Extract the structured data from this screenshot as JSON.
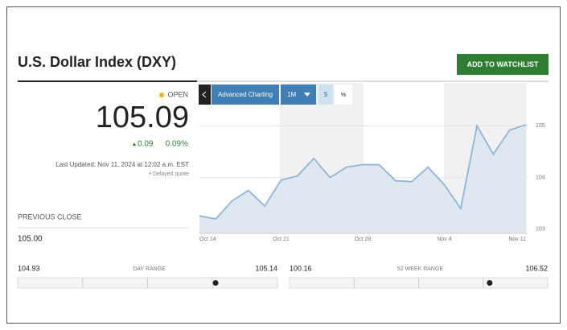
{
  "header": {
    "title": "U.S. Dollar Index (DXY)",
    "button": "ADD TO WATCHLIST"
  },
  "quote": {
    "status": "OPEN",
    "price": 105.09,
    "change": 0.09,
    "change_percent": "0.09%",
    "last_updated": "Last Updated: Nov 11, 2024 at 12:02 a.m. EST",
    "delayed": "• Delayed quote"
  },
  "previous_close": {
    "label": "PREVIOUS CLOSE",
    "value": "105.00"
  },
  "ranges": [
    {
      "low": 104.93,
      "label": "DAY RANGE",
      "high": 105.14
    },
    {
      "low": 100.16,
      "label": "52 WEEK RANGE",
      "high": 106.52
    }
  ],
  "toolbar": {
    "advanced": "Advanced Charting",
    "period": "1M",
    "dollar": "$",
    "percent": "%"
  },
  "chart_data": {
    "type": "line",
    "color": "#8fb4d6",
    "fill": "#dfe8f1",
    "categories": [
      "Oct 14",
      null,
      null,
      null,
      null,
      "Oct 21",
      null,
      null,
      null,
      null,
      "Oct 28",
      null,
      null,
      null,
      null,
      "Nov 4",
      null,
      null,
      null,
      null,
      "Nov 11"
    ],
    "values": [
      103.26,
      103.2,
      103.55,
      103.75,
      103.45,
      103.95,
      104.03,
      104.37,
      104.0,
      104.2,
      104.25,
      104.25,
      103.94,
      103.92,
      104.2,
      103.86,
      103.4,
      105.0,
      104.45,
      104.92,
      105.02
    ],
    "ylim": [
      102.92,
      105.83
    ],
    "yticks": [
      103,
      104,
      105
    ],
    "grid": true
  }
}
